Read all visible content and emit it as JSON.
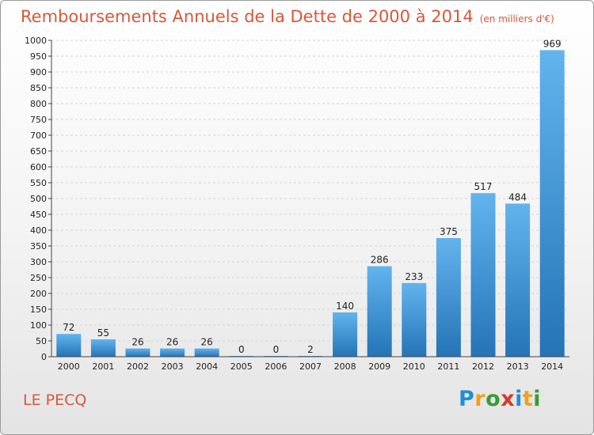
{
  "page": {
    "title": "Remboursements Annuels de la Dette de 2000 à 2014",
    "unit_note": "(en milliers d'€)",
    "city": "LE PECQ",
    "brand": "Proxiti"
  },
  "chart_data": {
    "type": "bar",
    "categories": [
      "2000",
      "2001",
      "2002",
      "2003",
      "2004",
      "2005",
      "2006",
      "2007",
      "2008",
      "2009",
      "2010",
      "2011",
      "2012",
      "2013",
      "2014"
    ],
    "values": [
      72,
      55,
      26,
      26,
      26,
      0,
      0,
      2,
      140,
      286,
      233,
      375,
      517,
      484,
      969
    ],
    "data_labels": [
      "72",
      "55",
      "26",
      "26",
      "26",
      "0",
      "0",
      "2",
      "140",
      "286",
      "233",
      "375",
      "517",
      "484",
      "969"
    ],
    "title": "Remboursements Annuels de la Dette de 2000 à 2014",
    "xlabel": "",
    "ylabel": "",
    "ylim": [
      0,
      1000
    ],
    "yticks": [
      0,
      50,
      100,
      150,
      200,
      250,
      300,
      350,
      400,
      450,
      500,
      550,
      600,
      650,
      700,
      750,
      800,
      850,
      900,
      950,
      1000
    ],
    "grid": true,
    "legend": "none",
    "colors": {
      "bar_light": "#62b4ee",
      "bar_dark": "#2474b6",
      "title": "#d8573a"
    }
  }
}
